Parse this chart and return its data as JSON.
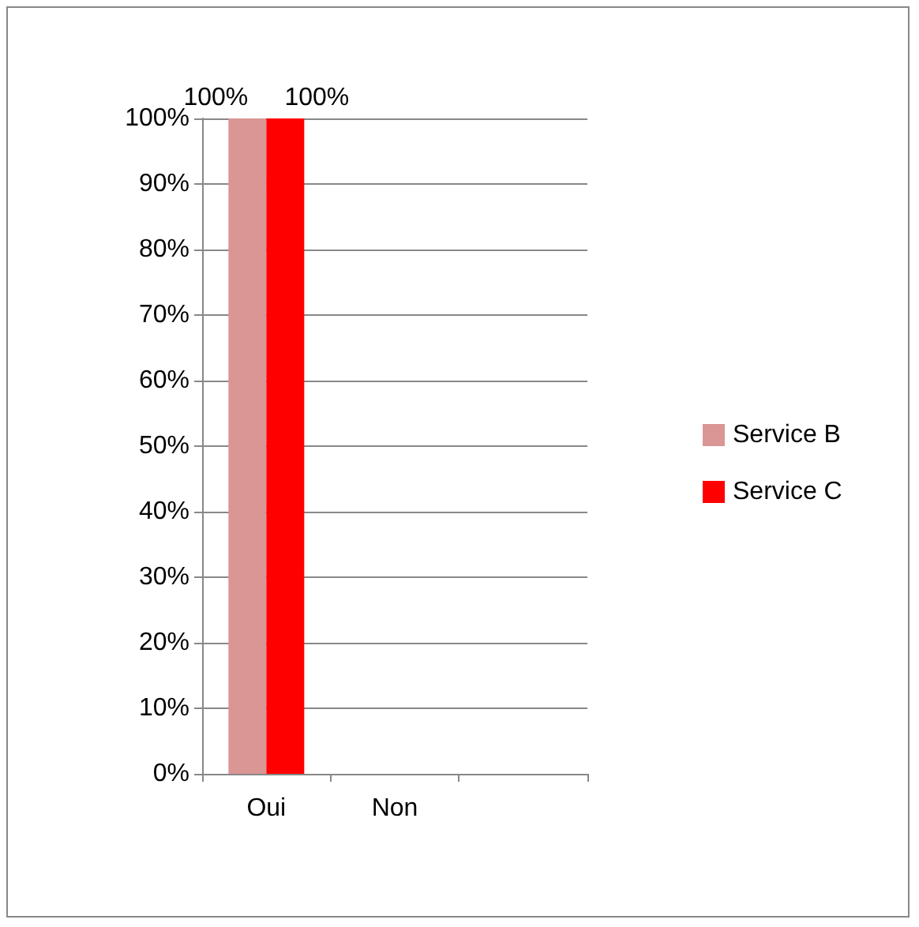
{
  "chart_data": {
    "type": "bar",
    "categories": [
      "Oui",
      "Non",
      null
    ],
    "series": [
      {
        "name": "Service B",
        "color": "#d99694",
        "values": [
          100,
          0,
          null
        ],
        "value_labels": [
          "100%",
          null,
          null
        ]
      },
      {
        "name": "Service C",
        "color": "#ff0000",
        "values": [
          100,
          0,
          null
        ],
        "value_labels": [
          "100%",
          null,
          null
        ]
      }
    ],
    "ylim": [
      0,
      100
    ],
    "yticks": [
      {
        "value": 0,
        "label": "0%"
      },
      {
        "value": 10,
        "label": "10%"
      },
      {
        "value": 20,
        "label": "20%"
      },
      {
        "value": 30,
        "label": "30%"
      },
      {
        "value": 40,
        "label": "40%"
      },
      {
        "value": 50,
        "label": "50%"
      },
      {
        "value": 60,
        "label": "60%"
      },
      {
        "value": 70,
        "label": "70%"
      },
      {
        "value": 80,
        "label": "80%"
      },
      {
        "value": 90,
        "label": "90%"
      },
      {
        "value": 100,
        "label": "100%"
      }
    ],
    "grid": "y",
    "legend": "right"
  }
}
